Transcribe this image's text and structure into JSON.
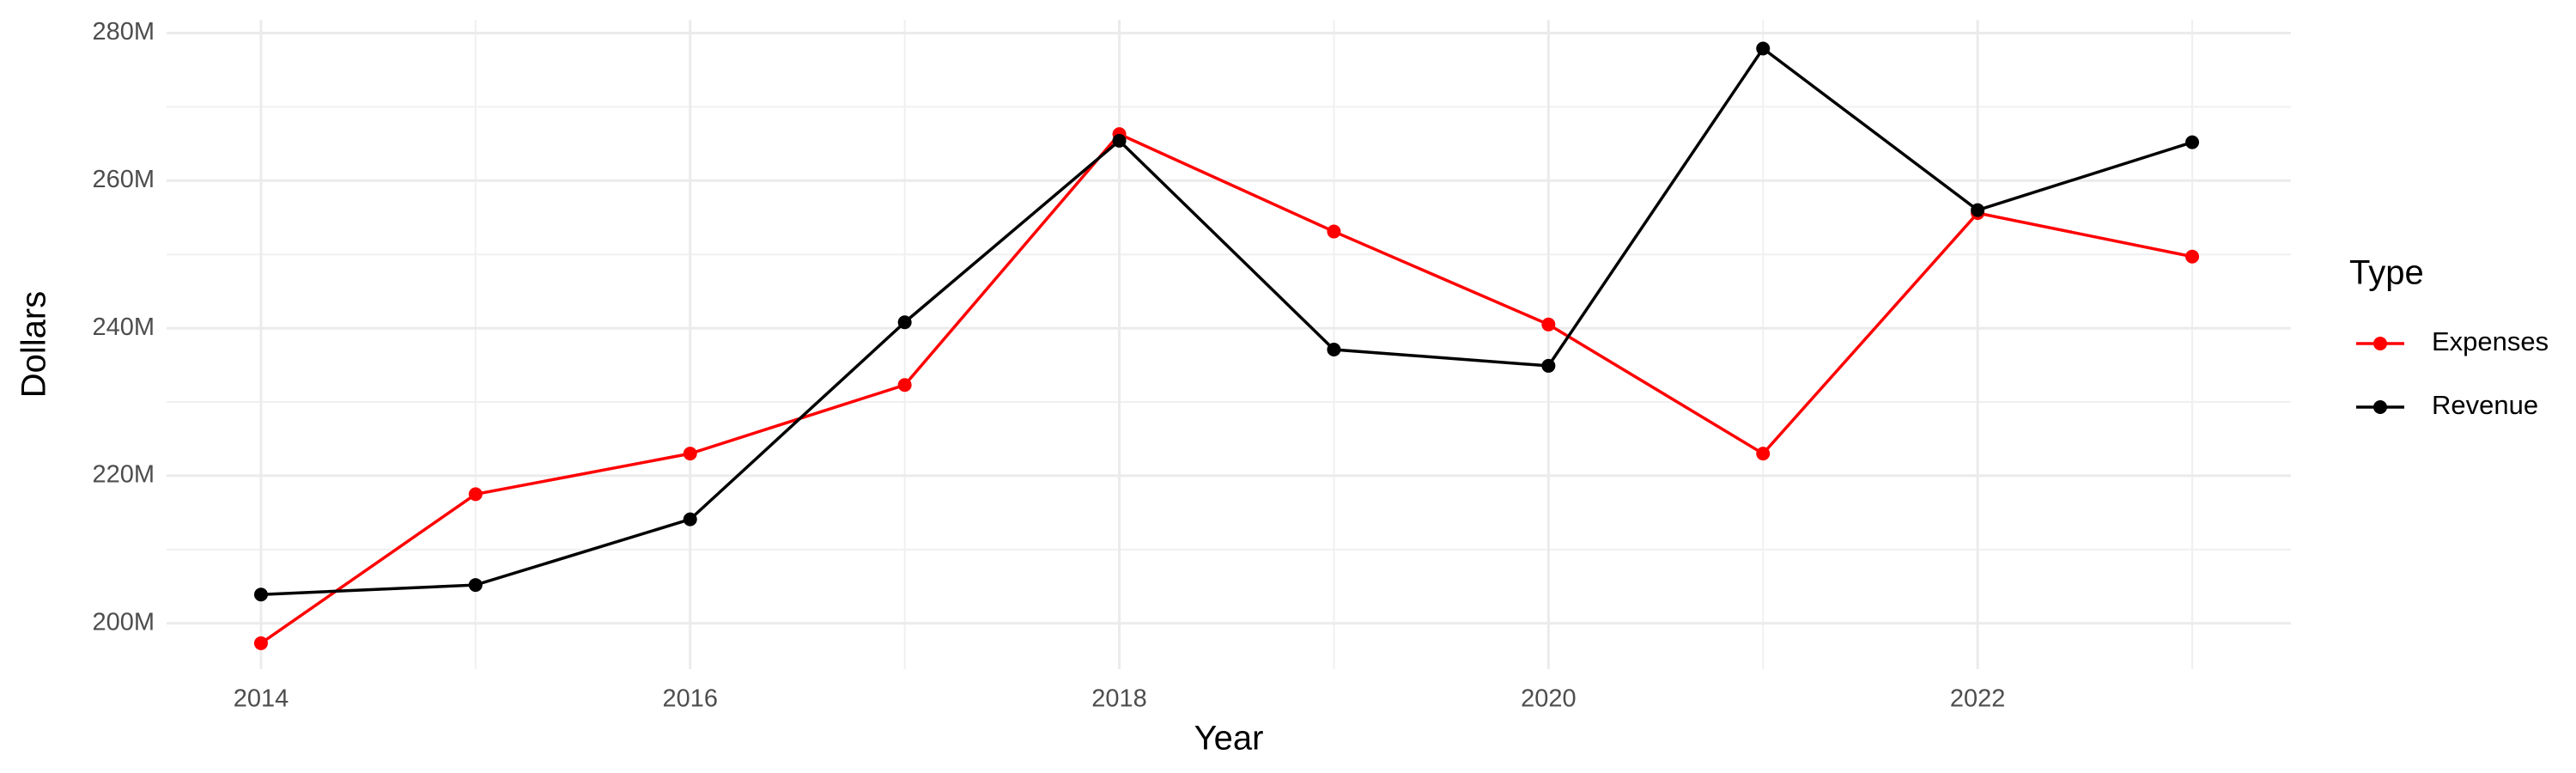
{
  "chart_data": {
    "type": "line",
    "x_label": "Year",
    "y_label": "Dollars",
    "legend_title": "Type",
    "legend_position": "right",
    "grid": true,
    "x": [
      2014,
      2015,
      2016,
      2017,
      2018,
      2019,
      2020,
      2021,
      2022,
      2023
    ],
    "series": [
      {
        "name": "Expenses",
        "color": "#ff0000",
        "values": [
          197300000,
          217500000,
          223000000,
          232300000,
          266300000,
          253100000,
          240500000,
          223000000,
          255600000,
          249700000
        ]
      },
      {
        "name": "Revenue",
        "color": "#000000",
        "values": [
          203900000,
          205200000,
          214100000,
          240800000,
          265400000,
          237100000,
          234900000,
          277900000,
          256000000,
          265200000
        ]
      }
    ],
    "xlim": [
      2013.56,
      2023.46
    ],
    "xticks": [
      2014,
      2016,
      2018,
      2020,
      2022
    ],
    "ylim": [
      193800000,
      281800000
    ],
    "yticks": [
      {
        "value": 200000000,
        "label": "200M"
      },
      {
        "value": 220000000,
        "label": "220M"
      },
      {
        "value": 240000000,
        "label": "240M"
      },
      {
        "value": 260000000,
        "label": "260M"
      },
      {
        "value": 280000000,
        "label": "280M"
      }
    ]
  }
}
